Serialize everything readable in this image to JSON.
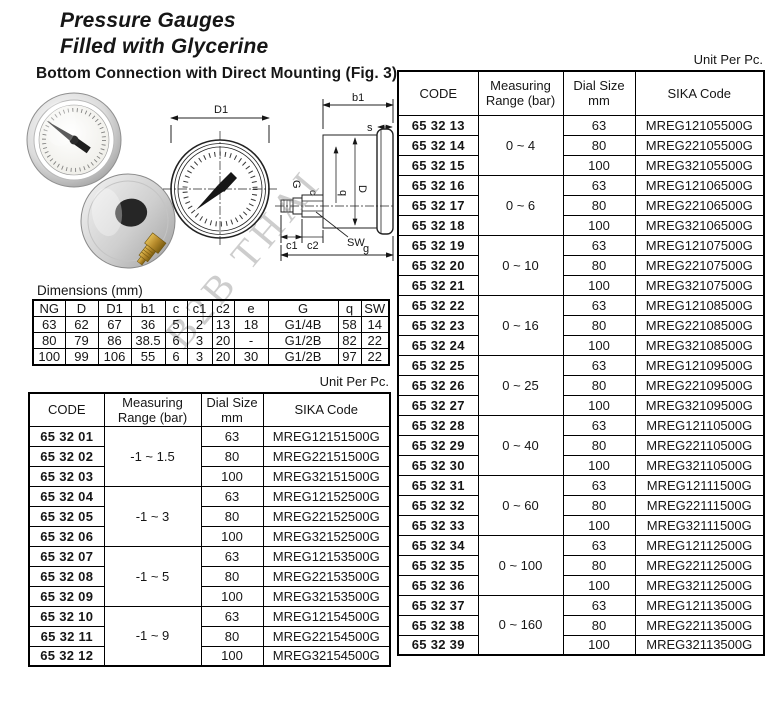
{
  "page": {
    "title_line1": "Pressure Gauges",
    "title_line2": "Filled with Glycerine",
    "subtitle": "Bottom Connection with Direct Mounting (Fig. 3)",
    "watermark": "B2B THAI"
  },
  "diagram_labels": {
    "d1": "D1",
    "b1": "b1",
    "s": "s",
    "d": "D",
    "g_thread": "G",
    "q": "q",
    "c": "c",
    "c1": "c1",
    "c2": "c2",
    "sw": "SW",
    "g": "g"
  },
  "dimensions_table": {
    "caption": "Dimensions (mm)",
    "headers": [
      "NG",
      "D",
      "D1",
      "b1",
      "c",
      "c1",
      "c2",
      "e",
      "G",
      "q",
      "SW"
    ],
    "rows": [
      [
        "63",
        "62",
        "67",
        "36",
        "5",
        "2",
        "13",
        "18",
        "G1/4B",
        "58",
        "14"
      ],
      [
        "80",
        "79",
        "86",
        "38.5",
        "6",
        "3",
        "20",
        "-",
        "G1/2B",
        "82",
        "22"
      ],
      [
        "100",
        "99",
        "106",
        "55",
        "6",
        "3",
        "20",
        "30",
        "G1/2B",
        "97",
        "22"
      ]
    ]
  },
  "left_table": {
    "unit_label": "Unit Per Pc.",
    "headers": [
      [
        "CODE"
      ],
      [
        "Measuring",
        "Range (bar)"
      ],
      [
        "Dial Size",
        "mm"
      ],
      [
        "SIKA Code"
      ]
    ],
    "groups": [
      {
        "range": "-1 ~ 1.5",
        "rows": [
          {
            "code": "65 32 01",
            "dial": "63",
            "sika": "MREG12151500G"
          },
          {
            "code": "65 32 02",
            "dial": "80",
            "sika": "MREG22151500G"
          },
          {
            "code": "65 32 03",
            "dial": "100",
            "sika": "MREG32151500G"
          }
        ]
      },
      {
        "range": "-1 ~ 3",
        "rows": [
          {
            "code": "65 32 04",
            "dial": "63",
            "sika": "MREG12152500G"
          },
          {
            "code": "65 32 05",
            "dial": "80",
            "sika": "MREG22152500G"
          },
          {
            "code": "65 32 06",
            "dial": "100",
            "sika": "MREG32152500G"
          }
        ]
      },
      {
        "range": "-1 ~ 5",
        "rows": [
          {
            "code": "65 32 07",
            "dial": "63",
            "sika": "MREG12153500G"
          },
          {
            "code": "65 32 08",
            "dial": "80",
            "sika": "MREG22153500G"
          },
          {
            "code": "65 32 09",
            "dial": "100",
            "sika": "MREG32153500G"
          }
        ]
      },
      {
        "range": "-1 ~ 9",
        "rows": [
          {
            "code": "65 32 10",
            "dial": "63",
            "sika": "MREG12154500G"
          },
          {
            "code": "65 32 11",
            "dial": "80",
            "sika": "MREG22154500G"
          },
          {
            "code": "65 32 12",
            "dial": "100",
            "sika": "MREG32154500G"
          }
        ]
      }
    ]
  },
  "right_table": {
    "unit_label": "Unit Per Pc.",
    "headers": [
      [
        "CODE"
      ],
      [
        "Measuring",
        "Range (bar)"
      ],
      [
        "Dial Size",
        "mm"
      ],
      [
        "SIKA Code"
      ]
    ],
    "groups": [
      {
        "range": "0 ~ 4",
        "rows": [
          {
            "code": "65 32 13",
            "dial": "63",
            "sika": "MREG12105500G"
          },
          {
            "code": "65 32 14",
            "dial": "80",
            "sika": "MREG22105500G"
          },
          {
            "code": "65 32 15",
            "dial": "100",
            "sika": "MREG32105500G"
          }
        ]
      },
      {
        "range": "0 ~ 6",
        "rows": [
          {
            "code": "65 32 16",
            "dial": "63",
            "sika": "MREG12106500G"
          },
          {
            "code": "65 32 17",
            "dial": "80",
            "sika": "MREG22106500G"
          },
          {
            "code": "65 32 18",
            "dial": "100",
            "sika": "MREG32106500G"
          }
        ]
      },
      {
        "range": "0 ~ 10",
        "rows": [
          {
            "code": "65 32 19",
            "dial": "63",
            "sika": "MREG12107500G"
          },
          {
            "code": "65 32 20",
            "dial": "80",
            "sika": "MREG22107500G"
          },
          {
            "code": "65 32 21",
            "dial": "100",
            "sika": "MREG32107500G"
          }
        ]
      },
      {
        "range": "0 ~ 16",
        "rows": [
          {
            "code": "65 32 22",
            "dial": "63",
            "sika": "MREG12108500G"
          },
          {
            "code": "65 32 23",
            "dial": "80",
            "sika": "MREG22108500G"
          },
          {
            "code": "65 32 24",
            "dial": "100",
            "sika": "MREG32108500G"
          }
        ]
      },
      {
        "range": "0 ~ 25",
        "rows": [
          {
            "code": "65 32 25",
            "dial": "63",
            "sika": "MREG12109500G"
          },
          {
            "code": "65 32 26",
            "dial": "80",
            "sika": "MREG22109500G"
          },
          {
            "code": "65 32 27",
            "dial": "100",
            "sika": "MREG32109500G"
          }
        ]
      },
      {
        "range": "0 ~ 40",
        "rows": [
          {
            "code": "65 32 28",
            "dial": "63",
            "sika": "MREG12110500G"
          },
          {
            "code": "65 32 29",
            "dial": "80",
            "sika": "MREG22110500G"
          },
          {
            "code": "65 32 30",
            "dial": "100",
            "sika": "MREG32110500G"
          }
        ]
      },
      {
        "range": "0 ~ 60",
        "rows": [
          {
            "code": "65 32 31",
            "dial": "63",
            "sika": "MREG12111500G"
          },
          {
            "code": "65 32 32",
            "dial": "80",
            "sika": "MREG22111500G"
          },
          {
            "code": "65 32 33",
            "dial": "100",
            "sika": "MREG32111500G"
          }
        ]
      },
      {
        "range": "0 ~ 100",
        "rows": [
          {
            "code": "65 32 34",
            "dial": "63",
            "sika": "MREG12112500G"
          },
          {
            "code": "65 32 35",
            "dial": "80",
            "sika": "MREG22112500G"
          },
          {
            "code": "65 32 36",
            "dial": "100",
            "sika": "MREG32112500G"
          }
        ]
      },
      {
        "range": "0 ~ 160",
        "rows": [
          {
            "code": "65 32 37",
            "dial": "63",
            "sika": "MREG12113500G"
          },
          {
            "code": "65 32 38",
            "dial": "80",
            "sika": "MREG22113500G"
          },
          {
            "code": "65 32 39",
            "dial": "100",
            "sika": "MREG32113500G"
          }
        ]
      }
    ]
  }
}
